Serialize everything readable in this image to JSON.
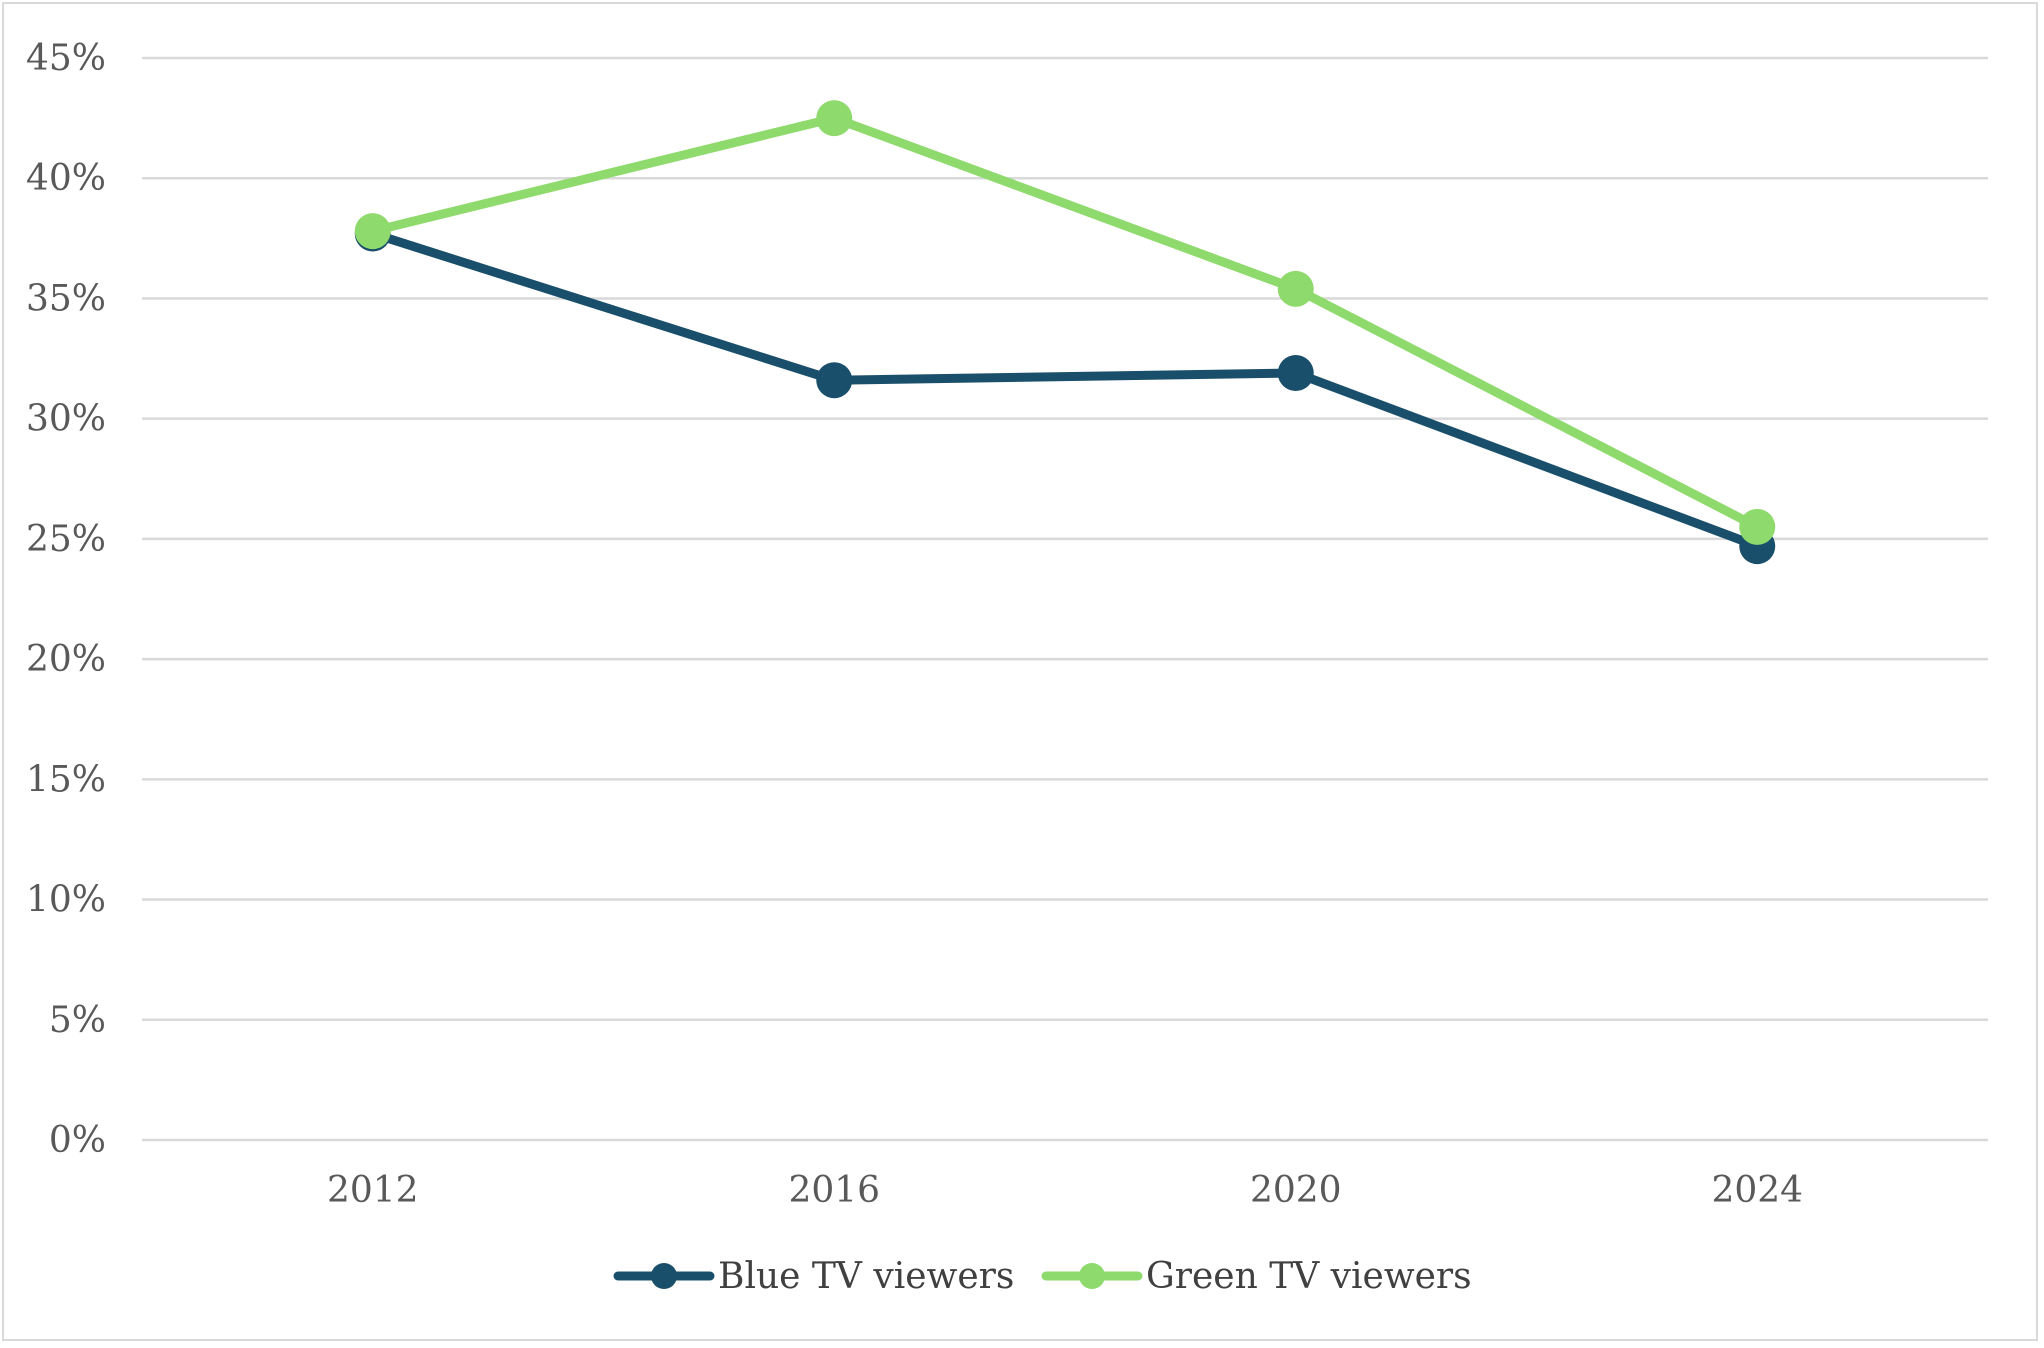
{
  "chart_data": {
    "type": "line",
    "title": "",
    "xlabel": "",
    "ylabel": "",
    "categories": [
      "2012",
      "2016",
      "2020",
      "2024"
    ],
    "ylim": [
      0,
      45
    ],
    "y_ticks": [
      "0%",
      "5%",
      "10%",
      "15%",
      "20%",
      "25%",
      "30%",
      "35%",
      "40%",
      "45%"
    ],
    "y_unit": "percent",
    "grid": true,
    "legend_position": "bottom",
    "series": [
      {
        "name": "Blue TV viewers",
        "values": [
          37.7,
          31.6,
          31.9,
          24.7
        ],
        "color": "#1a4f6b"
      },
      {
        "name": "Green TV viewers",
        "values": [
          37.8,
          42.5,
          35.4,
          25.5
        ],
        "color": "#8fda6d"
      }
    ]
  },
  "colors": {
    "gridline": "#d9d9d9",
    "axis": "#d9d9d9",
    "text": "#595959"
  }
}
